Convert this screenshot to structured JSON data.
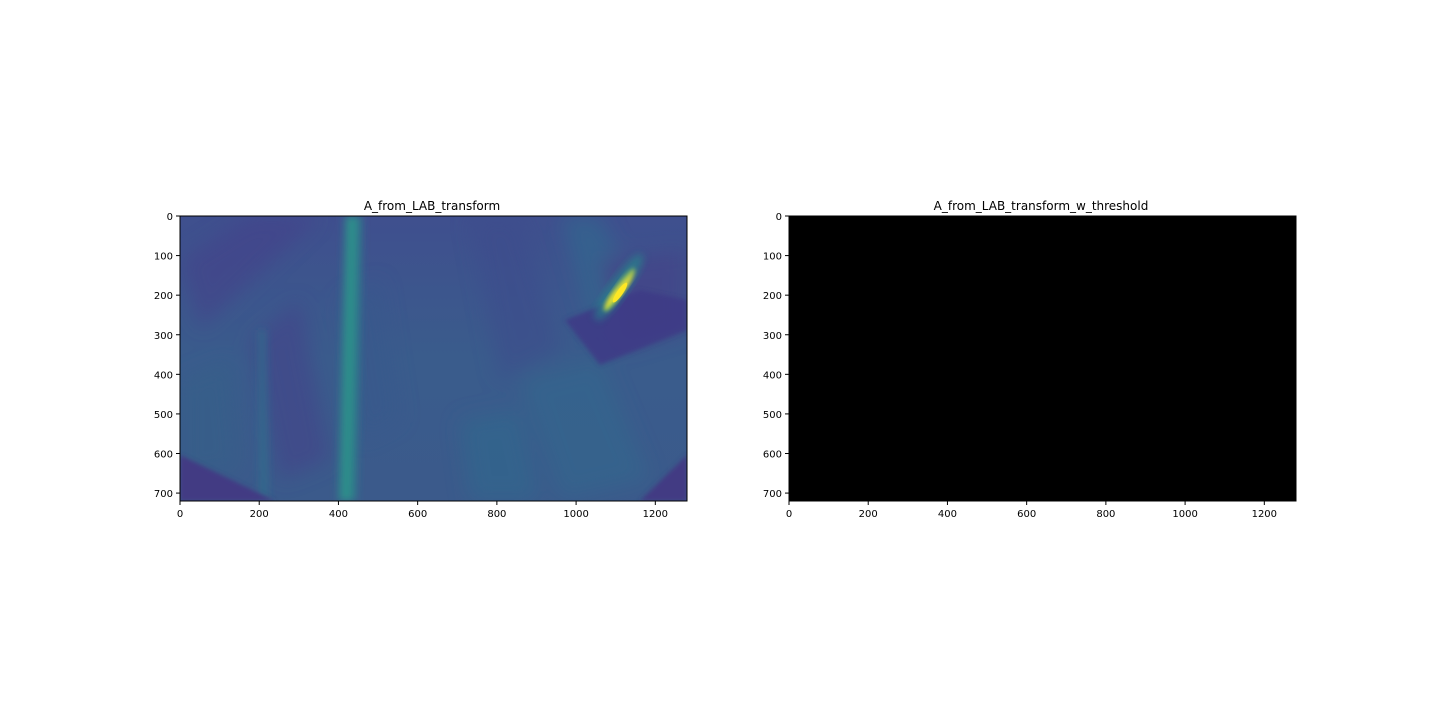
{
  "chart_data": [
    {
      "type": "heatmap",
      "title": "A_from_LAB_transform",
      "xlabel": "",
      "ylabel": "",
      "xlim": [
        0,
        1280
      ],
      "ylim": [
        720,
        0
      ],
      "xticks": [
        0,
        200,
        400,
        600,
        800,
        1000,
        1200
      ],
      "yticks": [
        0,
        100,
        200,
        300,
        400,
        500,
        600,
        700
      ],
      "colormap": "viridis",
      "background_color": "#3b5a8c",
      "features": [
        {
          "kind": "bright-streak",
          "x": [
            1065,
            1145
          ],
          "y": [
            250,
            160
          ],
          "color": "#e4e31a"
        },
        {
          "kind": "vertical-band",
          "x": [
            400,
            450
          ],
          "y": [
            0,
            720
          ],
          "color": "#2e8a8a"
        },
        {
          "kind": "dark-corner",
          "x": [
            0,
            270
          ],
          "y": [
            600,
            720
          ],
          "color": "#413a84"
        },
        {
          "kind": "dark-corner",
          "x": [
            1150,
            1280
          ],
          "y": [
            600,
            720
          ],
          "color": "#413a84"
        }
      ]
    },
    {
      "type": "heatmap",
      "title": "A_from_LAB_transform_w_threshold",
      "xlabel": "",
      "ylabel": "",
      "xlim": [
        0,
        1280
      ],
      "ylim": [
        720,
        0
      ],
      "xticks": [
        0,
        200,
        400,
        600,
        800,
        1000,
        1200
      ],
      "yticks": [
        0,
        100,
        200,
        300,
        400,
        500,
        600,
        700
      ],
      "colormap": "gray",
      "background_color": "#000000",
      "features": []
    }
  ]
}
